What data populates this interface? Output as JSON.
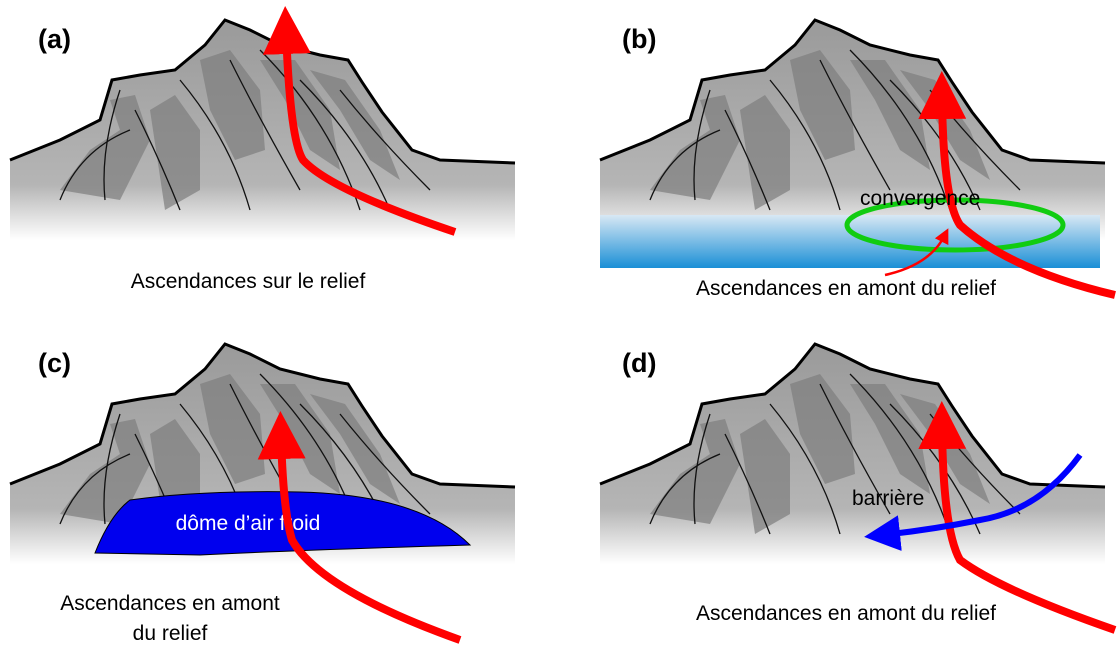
{
  "panels": [
    {
      "label": "(a)",
      "caption": [
        "Ascendances sur le relief"
      ]
    },
    {
      "label": "(b)",
      "annotation": "convergence",
      "caption": [
        "Ascendances en amont du relief"
      ]
    },
    {
      "label": "(c)",
      "annotation": "dôme d’air froid",
      "caption": [
        "Ascendances en amont",
        "du relief"
      ]
    },
    {
      "label": "(d)",
      "annotation": "barrière",
      "caption": [
        "Ascendances en amont du relief"
      ]
    }
  ]
}
